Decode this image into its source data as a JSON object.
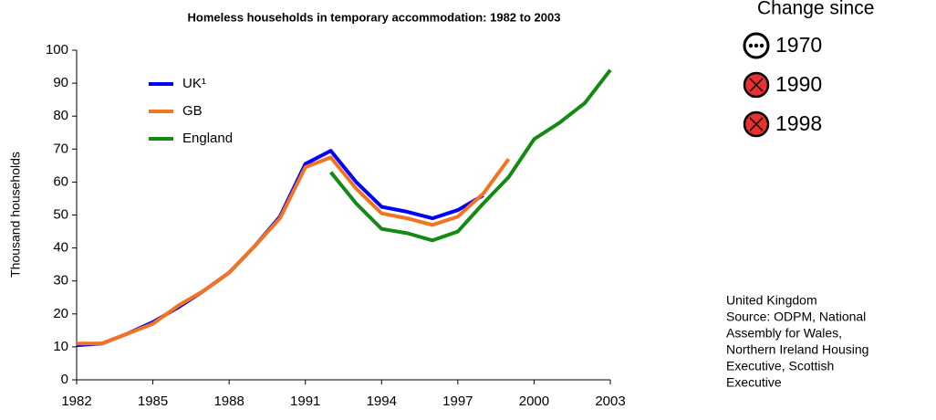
{
  "chart_data": {
    "type": "line",
    "title": "Homeless households in temporary accommodation: 1982 to 2003",
    "y_label": "Thousand households",
    "x": [
      1982,
      1983,
      1984,
      1985,
      1986,
      1987,
      1988,
      1989,
      1990,
      1991,
      1992,
      1993,
      1994,
      1995,
      1996,
      1997,
      1998,
      1999,
      2000,
      2001,
      2002,
      2003
    ],
    "series": [
      {
        "name": "UK¹",
        "color": "#0000ff",
        "values": [
          10.5,
          11,
          14,
          17.5,
          22,
          27,
          32.5,
          40.5,
          49.5,
          65.5,
          69.5,
          60,
          52.5,
          51,
          49,
          51.5,
          56,
          null,
          null,
          null,
          null,
          null
        ]
      },
      {
        "name": "GB",
        "color": "#f47321",
        "values": [
          11,
          11,
          14,
          17,
          22.5,
          27,
          32.5,
          40.5,
          49,
          64.5,
          67.5,
          58,
          50.5,
          49,
          47,
          49.5,
          56.5,
          67,
          null,
          null,
          null,
          null
        ]
      },
      {
        "name": "England",
        "color": "#138a13",
        "values": [
          null,
          null,
          null,
          null,
          null,
          null,
          null,
          null,
          null,
          null,
          63,
          53.5,
          45.8,
          44.5,
          42.3,
          45,
          53.5,
          61.5,
          73,
          78,
          84,
          94
        ]
      }
    ],
    "xlim": [
      1982,
      2003
    ],
    "xticks": [
      1982,
      1985,
      1988,
      1991,
      1994,
      1997,
      2000,
      2003
    ],
    "ylim": [
      0,
      100
    ],
    "yticks": [
      0,
      10,
      20,
      30,
      40,
      50,
      60,
      70,
      80,
      90,
      100
    ],
    "grid": false
  },
  "change_since": {
    "title": "Change since",
    "items": [
      "1970",
      "1990",
      "1998"
    ]
  },
  "note": [
    "United Kingdom",
    "Source: ODPM, National",
    "Assembly for Wales,",
    "Northern Ireland Housing",
    "Executive, Scottish",
    "Executive"
  ]
}
